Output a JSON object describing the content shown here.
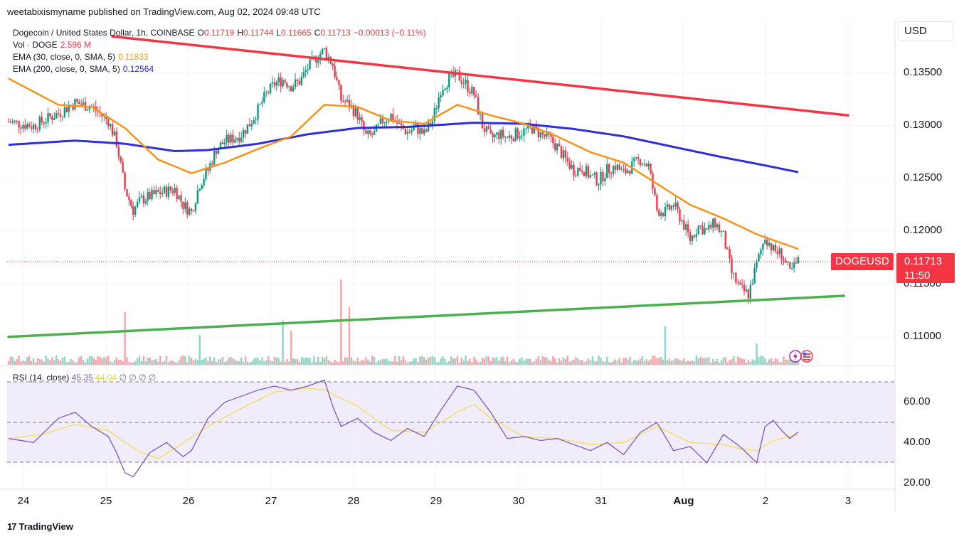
{
  "header": {
    "text": "weetabixismyname published on TradingView.com, Aug 02, 2024 09:48 UTC"
  },
  "legend": {
    "symbol": "Dogecoin / United States Dollar, 1h, COINBASE",
    "o_label": "O",
    "o": "0.11719",
    "h_label": "H",
    "h": "0.11744",
    "l_label": "L",
    "l": "0.11665",
    "c_label": "C",
    "c": "0.11713",
    "change": "−0.00013 (−0.11%)",
    "vol_label": "Vol · DOGE",
    "vol": "2.596 M",
    "ema30_label": "EMA (30, close, 0, SMA, 5)",
    "ema30": "0.11833",
    "ema200_label": "EMA (200, close, 0, SMA, 5)",
    "ema200": "0.12564"
  },
  "rsi_legend": {
    "label": "RSI (14, close)",
    "rsi": "45.35",
    "ma": "44.04",
    "na": "∅ ∅ ∅ ∅"
  },
  "currency": "USD",
  "price_ticks": [
    "0.13500",
    "0.13000",
    "0.12500",
    "0.12000",
    "0.11500",
    "0.11000"
  ],
  "rsi_ticks": [
    "60.00",
    "40.00",
    "20.00"
  ],
  "date_ticks": [
    "24",
    "25",
    "26",
    "27",
    "28",
    "29",
    "30",
    "31",
    "Aug",
    "2",
    "3"
  ],
  "last_price": {
    "symbol": "DOGEUSD",
    "price": "0.11713",
    "countdown": "11:50"
  },
  "footer": {
    "brand": "TradingView",
    "mark": "17"
  },
  "colors": {
    "up": "#089981",
    "down": "#f23645",
    "ema30": "#f7931a",
    "ema200": "#2f2fd8",
    "resistance": "#f23645",
    "support": "#4caf50",
    "rsi": "#7e57c2",
    "rsi_ma": "#f2dd5a"
  },
  "chart_data": {
    "type": "candlestick",
    "x_labels": [
      "24",
      "25",
      "26",
      "27",
      "28",
      "29",
      "30",
      "31",
      "Aug",
      "2",
      "3"
    ],
    "y_range": [
      0.1075,
      0.1385
    ],
    "rsi_range": [
      15,
      75
    ],
    "rsi_levels": [
      70,
      50,
      30
    ],
    "close_path": [
      [
        0,
        0.1304
      ],
      [
        3,
        0.13
      ],
      [
        6,
        0.1312
      ],
      [
        8,
        0.1322
      ],
      [
        10,
        0.1318
      ],
      [
        12,
        0.1305
      ],
      [
        13,
        0.1284
      ],
      [
        14,
        0.124
      ],
      [
        15,
        0.122
      ],
      [
        16,
        0.123
      ],
      [
        18,
        0.1236
      ],
      [
        20,
        0.124
      ],
      [
        21,
        0.1225
      ],
      [
        22,
        0.1218
      ],
      [
        23,
        0.1245
      ],
      [
        24,
        0.1258
      ],
      [
        25,
        0.1278
      ],
      [
        26,
        0.1285
      ],
      [
        27,
        0.1288
      ],
      [
        28,
        0.1292
      ],
      [
        29,
        0.1302
      ],
      [
        30,
        0.1315
      ],
      [
        31,
        0.133
      ],
      [
        32,
        0.134
      ],
      [
        33,
        0.1344
      ],
      [
        34,
        0.1338
      ],
      [
        35,
        0.1342
      ],
      [
        36,
        0.1355
      ],
      [
        37,
        0.1365
      ],
      [
        38,
        0.1372
      ],
      [
        39,
        0.1358
      ],
      [
        40,
        0.1325
      ],
      [
        41,
        0.132
      ],
      [
        42,
        0.131
      ],
      [
        43,
        0.129
      ],
      [
        44,
        0.1292
      ],
      [
        45,
        0.1305
      ],
      [
        46,
        0.131
      ],
      [
        47,
        0.13
      ],
      [
        48,
        0.1294
      ],
      [
        49,
        0.1298
      ],
      [
        50,
        0.1292
      ],
      [
        51,
        0.1305
      ],
      [
        52,
        0.1335
      ],
      [
        53,
        0.1345
      ],
      [
        54,
        0.1348
      ],
      [
        55,
        0.134
      ],
      [
        56,
        0.133
      ],
      [
        57,
        0.13
      ],
      [
        58,
        0.1288
      ],
      [
        59,
        0.1292
      ],
      [
        60,
        0.1289
      ],
      [
        61,
        0.1292
      ],
      [
        62,
        0.1295
      ],
      [
        63,
        0.1298
      ],
      [
        64,
        0.1292
      ],
      [
        65,
        0.1288
      ],
      [
        66,
        0.128
      ],
      [
        67,
        0.1268
      ],
      [
        68,
        0.1258
      ],
      [
        69,
        0.126
      ],
      [
        70,
        0.1252
      ],
      [
        71,
        0.1248
      ],
      [
        72,
        0.1258
      ],
      [
        73,
        0.1262
      ],
      [
        74,
        0.1255
      ],
      [
        75,
        0.1262
      ],
      [
        76,
        0.1268
      ],
      [
        77,
        0.1262
      ],
      [
        78,
        0.122
      ],
      [
        79,
        0.1218
      ],
      [
        80,
        0.1225
      ],
      [
        81,
        0.121
      ],
      [
        82,
        0.1192
      ],
      [
        83,
        0.1205
      ],
      [
        84,
        0.12
      ],
      [
        85,
        0.1208
      ],
      [
        86,
        0.1195
      ],
      [
        87,
        0.116
      ],
      [
        88,
        0.1145
      ],
      [
        89,
        0.114
      ],
      [
        90,
        0.1168
      ],
      [
        91,
        0.1195
      ],
      [
        92,
        0.1182
      ],
      [
        93,
        0.1178
      ],
      [
        94,
        0.116
      ],
      [
        95,
        0.1171
      ]
    ],
    "ema30_path": [
      [
        0,
        0.1345
      ],
      [
        6,
        0.132
      ],
      [
        10,
        0.1318
      ],
      [
        14,
        0.1298
      ],
      [
        18,
        0.1268
      ],
      [
        22,
        0.1255
      ],
      [
        26,
        0.1265
      ],
      [
        30,
        0.1278
      ],
      [
        34,
        0.129
      ],
      [
        38,
        0.132
      ],
      [
        42,
        0.1318
      ],
      [
        46,
        0.1305
      ],
      [
        50,
        0.1302
      ],
      [
        54,
        0.132
      ],
      [
        58,
        0.131
      ],
      [
        62,
        0.1302
      ],
      [
        66,
        0.129
      ],
      [
        70,
        0.1275
      ],
      [
        74,
        0.1265
      ],
      [
        78,
        0.1245
      ],
      [
        82,
        0.1225
      ],
      [
        86,
        0.1212
      ],
      [
        90,
        0.1197
      ],
      [
        95,
        0.1183
      ]
    ],
    "ema200_path": [
      [
        0,
        0.1282
      ],
      [
        8,
        0.1286
      ],
      [
        14,
        0.1283
      ],
      [
        20,
        0.1276
      ],
      [
        24,
        0.1277
      ],
      [
        30,
        0.1283
      ],
      [
        36,
        0.1292
      ],
      [
        42,
        0.1298
      ],
      [
        48,
        0.1299
      ],
      [
        56,
        0.1303
      ],
      [
        62,
        0.1302
      ],
      [
        68,
        0.1297
      ],
      [
        74,
        0.129
      ],
      [
        80,
        0.128
      ],
      [
        86,
        0.127
      ],
      [
        90,
        0.1264
      ],
      [
        95,
        0.1256
      ]
    ],
    "resistance_line": {
      "from": [
        12.5,
        0.1385
      ],
      "to": [
        101,
        0.131
      ]
    },
    "support_line": {
      "from": [
        0,
        0.10995
      ],
      "to": [
        100.5,
        0.11385
      ]
    },
    "rsi_path": [
      [
        0,
        42
      ],
      [
        3,
        40
      ],
      [
        6,
        52
      ],
      [
        8,
        55
      ],
      [
        10,
        48
      ],
      [
        12,
        43
      ],
      [
        13,
        35
      ],
      [
        14,
        25
      ],
      [
        15,
        23
      ],
      [
        17,
        35
      ],
      [
        19,
        40
      ],
      [
        21,
        33
      ],
      [
        22,
        36
      ],
      [
        24,
        52
      ],
      [
        26,
        60
      ],
      [
        28,
        63
      ],
      [
        30,
        66
      ],
      [
        32,
        68
      ],
      [
        34,
        66
      ],
      [
        36,
        68
      ],
      [
        38,
        71
      ],
      [
        39,
        58
      ],
      [
        40,
        48
      ],
      [
        42,
        52
      ],
      [
        44,
        45
      ],
      [
        46,
        41
      ],
      [
        48,
        47
      ],
      [
        50,
        43
      ],
      [
        52,
        56
      ],
      [
        54,
        68
      ],
      [
        56,
        66
      ],
      [
        58,
        55
      ],
      [
        60,
        42
      ],
      [
        62,
        43
      ],
      [
        64,
        41
      ],
      [
        66,
        42
      ],
      [
        68,
        39
      ],
      [
        70,
        36
      ],
      [
        72,
        40
      ],
      [
        74,
        34
      ],
      [
        76,
        45
      ],
      [
        78,
        50
      ],
      [
        80,
        36
      ],
      [
        82,
        38
      ],
      [
        84,
        30
      ],
      [
        86,
        44
      ],
      [
        88,
        38
      ],
      [
        90,
        30
      ],
      [
        91,
        48
      ],
      [
        92,
        51
      ],
      [
        93,
        46
      ],
      [
        94,
        42
      ],
      [
        95,
        45.35
      ]
    ],
    "rsi_ma_path": [
      [
        0,
        42
      ],
      [
        4,
        44
      ],
      [
        8,
        49
      ],
      [
        12,
        46
      ],
      [
        14,
        40
      ],
      [
        16,
        35
      ],
      [
        18,
        32
      ],
      [
        20,
        37
      ],
      [
        24,
        48
      ],
      [
        28,
        57
      ],
      [
        32,
        65
      ],
      [
        36,
        67
      ],
      [
        38,
        66
      ],
      [
        42,
        58
      ],
      [
        44,
        52
      ],
      [
        46,
        46
      ],
      [
        50,
        45
      ],
      [
        54,
        55
      ],
      [
        56,
        59
      ],
      [
        58,
        52
      ],
      [
        62,
        43
      ],
      [
        66,
        42
      ],
      [
        70,
        39
      ],
      [
        74,
        40
      ],
      [
        78,
        48
      ],
      [
        82,
        40
      ],
      [
        86,
        39
      ],
      [
        88,
        37
      ],
      [
        90,
        36
      ],
      [
        92,
        41
      ],
      [
        95,
        44.04
      ]
    ],
    "volume_spikes": [
      [
        14,
        0.62
      ],
      [
        23,
        0.35
      ],
      [
        33,
        0.52
      ],
      [
        34,
        0.4
      ],
      [
        40,
        1.0
      ],
      [
        41,
        0.68
      ],
      [
        79,
        0.45
      ],
      [
        90,
        0.25
      ]
    ]
  }
}
